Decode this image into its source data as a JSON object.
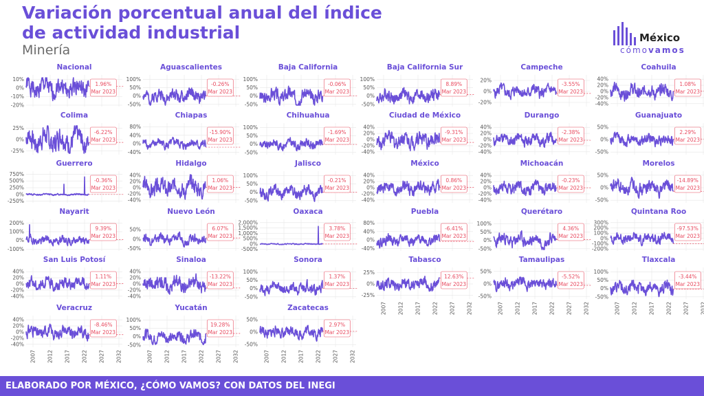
{
  "header": {
    "title": "Variación porcentual anual del índice de actividad industrial",
    "subtitle": "Minería"
  },
  "logo": {
    "brand": "México",
    "tag_light": "cómo",
    "tag_bold": "vamos"
  },
  "footer": {
    "text": "ELABORADO POR MÉXICO, ¿CÓMO VAMOS? CON DATOS DEL INEGI"
  },
  "colors": {
    "accent": "#6a4fd8",
    "line": "#6a4fd8",
    "label": "#e84a5f",
    "grid": "#e6e6e6",
    "axis_text": "#555555"
  },
  "chart_data": [
    {
      "type": "line",
      "title": "Nacional",
      "yticks": [
        "10%",
        "0%",
        "-10%",
        "-20%"
      ],
      "ylim": [
        -20,
        12
      ],
      "yvals": [
        10,
        0,
        -10,
        -20
      ],
      "last_value": 1.96,
      "label": "1.96%",
      "date": "Mar 2023",
      "x_range": [
        2005,
        2023.25
      ],
      "amp": 7,
      "seed": 1
    },
    {
      "type": "line",
      "title": "Aguascalientes",
      "yticks": [
        "100%",
        "50%",
        "0%",
        "-50%"
      ],
      "ylim": [
        -55,
        110
      ],
      "yvals": [
        100,
        50,
        0,
        -50
      ],
      "last_value": -0.26,
      "label": "-0.26%",
      "date": "Mar 2023",
      "x_range": [
        2005,
        2023.25
      ],
      "amp": 25,
      "seed": 2
    },
    {
      "type": "line",
      "title": "Baja California",
      "yticks": [
        "100%",
        "50%",
        "0%",
        "-50%"
      ],
      "ylim": [
        -55,
        110
      ],
      "yvals": [
        100,
        50,
        0,
        -50
      ],
      "last_value": -0.06,
      "label": "-0.06%",
      "date": "Mar 2023",
      "x_range": [
        2005,
        2023.25
      ],
      "amp": 28,
      "seed": 3
    },
    {
      "type": "line",
      "title": "Baja California Sur",
      "yticks": [
        "100%",
        "50%",
        "0%",
        "-50%"
      ],
      "ylim": [
        -55,
        110
      ],
      "yvals": [
        100,
        50,
        0,
        -50
      ],
      "last_value": 8.89,
      "label": "8.89%",
      "date": "Mar 2023",
      "x_range": [
        2005,
        2023.25
      ],
      "amp": 25,
      "seed": 4
    },
    {
      "type": "line",
      "title": "Campeche",
      "yticks": [
        "20%",
        "0%",
        "-20%"
      ],
      "ylim": [
        -25,
        25
      ],
      "yvals": [
        20,
        0,
        -20
      ],
      "last_value": -3.55,
      "label": "-3.55%",
      "date": "Mar 2023",
      "x_range": [
        2005,
        2023.25
      ],
      "amp": 7,
      "seed": 5
    },
    {
      "type": "line",
      "title": "Coahuila",
      "yticks": [
        "40%",
        "20%",
        "0%",
        "-20%",
        "-40%"
      ],
      "ylim": [
        -45,
        45
      ],
      "yvals": [
        40,
        20,
        0,
        -20,
        -40
      ],
      "last_value": 1.08,
      "label": "1.08%",
      "date": "Mar 2023",
      "x_range": [
        2005,
        2023.25
      ],
      "amp": 14,
      "seed": 6
    },
    {
      "type": "line",
      "title": "Colima",
      "yticks": [
        "25%",
        "0%",
        "-25%"
      ],
      "ylim": [
        -30,
        30
      ],
      "yvals": [
        25,
        0,
        -25
      ],
      "last_value": -6.22,
      "label": "-6.22%",
      "date": "Mar 2023",
      "x_range": [
        2005,
        2023.25
      ],
      "amp": 16,
      "seed": 7
    },
    {
      "type": "line",
      "title": "Chiapas",
      "yticks": [
        "80%",
        "40%",
        "0%",
        "-40%"
      ],
      "ylim": [
        -45,
        85
      ],
      "yvals": [
        80,
        40,
        0,
        -40
      ],
      "last_value": -15.9,
      "label": "-15.90%",
      "date": "Mar 2023",
      "x_range": [
        2005,
        2023.25
      ],
      "amp": 14,
      "seed": 8
    },
    {
      "type": "line",
      "title": "Chihuahua",
      "yticks": [
        "100%",
        "50%",
        "0%",
        "-50%"
      ],
      "ylim": [
        -55,
        110
      ],
      "yvals": [
        100,
        50,
        0,
        -50
      ],
      "last_value": -1.69,
      "label": "-1.69%",
      "date": "Mar 2023",
      "x_range": [
        2005,
        2023.25
      ],
      "amp": 18,
      "seed": 9
    },
    {
      "type": "line",
      "title": "Ciudad de México",
      "yticks": [
        "40%",
        "20%",
        "0%",
        "-20%",
        "-40%"
      ],
      "ylim": [
        -45,
        45
      ],
      "yvals": [
        40,
        20,
        0,
        -20,
        -40
      ],
      "last_value": -9.31,
      "label": "-9.31%",
      "date": "Mar 2023",
      "x_range": [
        2005,
        2023.25
      ],
      "amp": 16,
      "seed": 10
    },
    {
      "type": "line",
      "title": "Durango",
      "yticks": [
        "40%",
        "20%",
        "0%",
        "-20%",
        "-40%"
      ],
      "ylim": [
        -45,
        45
      ],
      "yvals": [
        40,
        20,
        0,
        -20,
        -40
      ],
      "last_value": -2.38,
      "label": "-2.38%",
      "date": "Mar 2023",
      "x_range": [
        2005,
        2023.25
      ],
      "amp": 12,
      "seed": 11
    },
    {
      "type": "line",
      "title": "Guanajuato",
      "yticks": [
        "50%",
        "0%",
        "-50%"
      ],
      "ylim": [
        -55,
        55
      ],
      "yvals": [
        50,
        0,
        -50
      ],
      "last_value": 2.29,
      "label": "2.29%",
      "date": "Mar 2023",
      "x_range": [
        2005,
        2023.25
      ],
      "amp": 14,
      "seed": 12
    },
    {
      "type": "line",
      "title": "Guerrero",
      "yticks": [
        "750%",
        "500%",
        "250%",
        "0%",
        "-250%"
      ],
      "ylim": [
        -260,
        760
      ],
      "yvals": [
        750,
        500,
        250,
        0,
        -250
      ],
      "last_value": -0.36,
      "label": "-0.36%",
      "date": "Mar 2023",
      "x_range": [
        2005,
        2023.25
      ],
      "amp": 20,
      "seed": 13,
      "spikes": [
        [
          2022,
          650
        ],
        [
          2016,
          380
        ]
      ]
    },
    {
      "type": "line",
      "title": "Hidalgo",
      "yticks": [
        "40%",
        "20%",
        "0%",
        "-20%",
        "-40%"
      ],
      "ylim": [
        -45,
        45
      ],
      "yvals": [
        40,
        20,
        0,
        -20,
        -40
      ],
      "last_value": 1.06,
      "label": "1.06%",
      "date": "Mar 2023",
      "x_range": [
        2005,
        2023.25
      ],
      "amp": 18,
      "seed": 14
    },
    {
      "type": "line",
      "title": "Jalisco",
      "yticks": [
        "100%",
        "50%",
        "0%",
        "-50%"
      ],
      "ylim": [
        -55,
        110
      ],
      "yvals": [
        100,
        50,
        0,
        -50
      ],
      "last_value": -0.21,
      "label": "-0.21%",
      "date": "Mar 2023",
      "x_range": [
        2005,
        2023.25
      ],
      "amp": 22,
      "seed": 15
    },
    {
      "type": "line",
      "title": "México",
      "yticks": [
        "40%",
        "20%",
        "0%",
        "-20%",
        "-40%"
      ],
      "ylim": [
        -45,
        45
      ],
      "yvals": [
        40,
        20,
        0,
        -20,
        -40
      ],
      "last_value": 0.86,
      "label": "0.86%",
      "date": "Mar 2023",
      "x_range": [
        2005,
        2023.25
      ],
      "amp": 13,
      "seed": 16
    },
    {
      "type": "line",
      "title": "Michoacán",
      "yticks": [
        "40%",
        "20%",
        "0%",
        "-20%",
        "-40%"
      ],
      "ylim": [
        -45,
        45
      ],
      "yvals": [
        40,
        20,
        0,
        -20,
        -40
      ],
      "last_value": -0.23,
      "label": "-0.23%",
      "date": "Mar 2023",
      "x_range": [
        2005,
        2023.25
      ],
      "amp": 13,
      "seed": 17
    },
    {
      "type": "line",
      "title": "Morelos",
      "yticks": [
        "50%",
        "0%",
        "-50%"
      ],
      "ylim": [
        -55,
        55
      ],
      "yvals": [
        50,
        0,
        -50
      ],
      "last_value": -14.89,
      "label": "-14.89%",
      "date": "Mar 2023",
      "x_range": [
        2005,
        2023.25
      ],
      "amp": 18,
      "seed": 18
    },
    {
      "type": "line",
      "title": "Nayarit",
      "yticks": [
        "200%",
        "100%",
        "0%",
        "-100%"
      ],
      "ylim": [
        -105,
        210
      ],
      "yvals": [
        200,
        100,
        0,
        -100
      ],
      "last_value": 9.39,
      "label": "9.39%",
      "date": "Mar 2023",
      "x_range": [
        2005,
        2023.25
      ],
      "amp": 30,
      "seed": 19,
      "spikes": [
        [
          2006,
          180
        ]
      ]
    },
    {
      "type": "line",
      "title": "Nuevo León",
      "yticks": [
        "50%",
        "0%",
        "-50%"
      ],
      "ylim": [
        -55,
        90
      ],
      "yvals": [
        50,
        0,
        -50
      ],
      "last_value": 6.07,
      "label": "6.07%",
      "date": "Mar 2023",
      "x_range": [
        2005,
        2023.25
      ],
      "amp": 16,
      "seed": 20
    },
    {
      "type": "line",
      "title": "Oaxaca",
      "yticks": [
        "2,000%",
        "1,500%",
        "1,000%",
        "500%",
        "0%",
        "-500%"
      ],
      "ylim": [
        -520,
        2050
      ],
      "yvals": [
        2000,
        1500,
        1000,
        500,
        0,
        -500
      ],
      "last_value": 3.78,
      "label": "3.78%",
      "date": "Mar 2023",
      "x_range": [
        2005,
        2023.25
      ],
      "amp": 30,
      "seed": 21,
      "spikes": [
        [
          2022,
          1650
        ]
      ]
    },
    {
      "type": "line",
      "title": "Puebla",
      "yticks": [
        "80%",
        "40%",
        "0%",
        "-40%"
      ],
      "ylim": [
        -45,
        85
      ],
      "yvals": [
        80,
        40,
        0,
        -40
      ],
      "last_value": -6.41,
      "label": "-6.41%",
      "date": "Mar 2023",
      "x_range": [
        2005,
        2023.25
      ],
      "amp": 16,
      "seed": 22
    },
    {
      "type": "line",
      "title": "Querétaro",
      "yticks": [
        "100%",
        "50%",
        "0%",
        "-50%"
      ],
      "ylim": [
        -55,
        110
      ],
      "yvals": [
        100,
        50,
        0,
        -50
      ],
      "last_value": 4.36,
      "label": "4.36%",
      "date": "Mar 2023",
      "x_range": [
        2005,
        2023.25
      ],
      "amp": 25,
      "seed": 23
    },
    {
      "type": "line",
      "title": "Quintana Roo",
      "yticks": [
        "300%",
        "200%",
        "100%",
        "0%",
        "-100%",
        "-200%"
      ],
      "ylim": [
        -210,
        310
      ],
      "yvals": [
        300,
        200,
        100,
        0,
        -100,
        -200
      ],
      "last_value": -97.53,
      "label": "-97.53%",
      "date": "Mar 2023",
      "x_range": [
        2005,
        2023.25
      ],
      "amp": 60,
      "seed": 24
    },
    {
      "type": "line",
      "title": "San Luis Potosí",
      "yticks": [
        "40%",
        "20%",
        "0%",
        "-20%",
        "-40%"
      ],
      "ylim": [
        -45,
        45
      ],
      "yvals": [
        40,
        20,
        0,
        -20,
        -40
      ],
      "last_value": 1.11,
      "label": "1.11%",
      "date": "Mar 2023",
      "x_range": [
        2005,
        2023.25
      ],
      "amp": 12,
      "seed": 25
    },
    {
      "type": "line",
      "title": "Sinaloa",
      "yticks": [
        "40%",
        "20%",
        "0%",
        "-20%",
        "-40%"
      ],
      "ylim": [
        -45,
        45
      ],
      "yvals": [
        40,
        20,
        0,
        -20,
        -40
      ],
      "last_value": -13.22,
      "label": "-13.22%",
      "date": "Mar 2023",
      "x_range": [
        2005,
        2023.25
      ],
      "amp": 16,
      "seed": 26
    },
    {
      "type": "line",
      "title": "Sonora",
      "yticks": [
        "100%",
        "50%",
        "0%",
        "-50%"
      ],
      "ylim": [
        -55,
        110
      ],
      "yvals": [
        100,
        50,
        0,
        -50
      ],
      "last_value": 1.37,
      "label": "1.37%",
      "date": "Mar 2023",
      "x_range": [
        2005,
        2023.25
      ],
      "amp": 22,
      "seed": 27
    },
    {
      "type": "line",
      "title": "Tabasco",
      "yticks": [
        "25%",
        "0%",
        "-25%"
      ],
      "ylim": [
        -30,
        30
      ],
      "yvals": [
        25,
        0,
        -25
      ],
      "last_value": 12.63,
      "label": "12.63%",
      "date": "Mar 2023",
      "x_range": [
        2005,
        2023.25
      ],
      "amp": 8,
      "seed": 28
    },
    {
      "type": "line",
      "title": "Tamaulipas",
      "yticks": [
        "50%",
        "0%",
        "-50%"
      ],
      "ylim": [
        -55,
        55
      ],
      "yvals": [
        50,
        0,
        -50
      ],
      "last_value": -5.52,
      "label": "-5.52%",
      "date": "Mar 2023",
      "x_range": [
        2005,
        2023.25
      ],
      "amp": 14,
      "seed": 29
    },
    {
      "type": "line",
      "title": "Tlaxcala",
      "yticks": [
        "100%",
        "50%",
        "0%",
        "-50%"
      ],
      "ylim": [
        -55,
        110
      ],
      "yvals": [
        100,
        50,
        0,
        -50
      ],
      "last_value": -3.44,
      "label": "-3.44%",
      "date": "Mar 2023",
      "x_range": [
        2005,
        2023.25
      ],
      "amp": 25,
      "seed": 30
    },
    {
      "type": "line",
      "title": "Veracruz",
      "yticks": [
        "40%",
        "20%",
        "0%",
        "-20%",
        "-40%"
      ],
      "ylim": [
        -45,
        45
      ],
      "yvals": [
        40,
        20,
        0,
        -20,
        -40
      ],
      "last_value": -8.46,
      "label": "-8.46%",
      "date": "Mar 2023",
      "x_range": [
        2005,
        2023.25
      ],
      "amp": 13,
      "seed": 31
    },
    {
      "type": "line",
      "title": "Yucatán",
      "yticks": [
        "100%",
        "50%",
        "0%",
        "-50%"
      ],
      "ylim": [
        -55,
        110
      ],
      "yvals": [
        100,
        50,
        0,
        -50
      ],
      "last_value": 19.28,
      "label": "19.28%",
      "date": "Mar 2023",
      "x_range": [
        2005,
        2023.25
      ],
      "amp": 22,
      "seed": 32
    },
    {
      "type": "line",
      "title": "Zacatecas",
      "yticks": [
        "50%",
        "0%",
        "-50%"
      ],
      "ylim": [
        -55,
        55
      ],
      "yvals": [
        50,
        0,
        -50
      ],
      "last_value": 2.97,
      "label": "2.97%",
      "date": "Mar 2023",
      "x_range": [
        2005,
        2023.25
      ],
      "amp": 15,
      "seed": 33
    }
  ],
  "x_axis": {
    "ticks": [
      "2007",
      "2012",
      "2017",
      "2022",
      "2027",
      "2032"
    ],
    "values": [
      2007,
      2012,
      2017,
      2022,
      2027,
      2032
    ],
    "xlim": [
      2005,
      2033
    ]
  }
}
